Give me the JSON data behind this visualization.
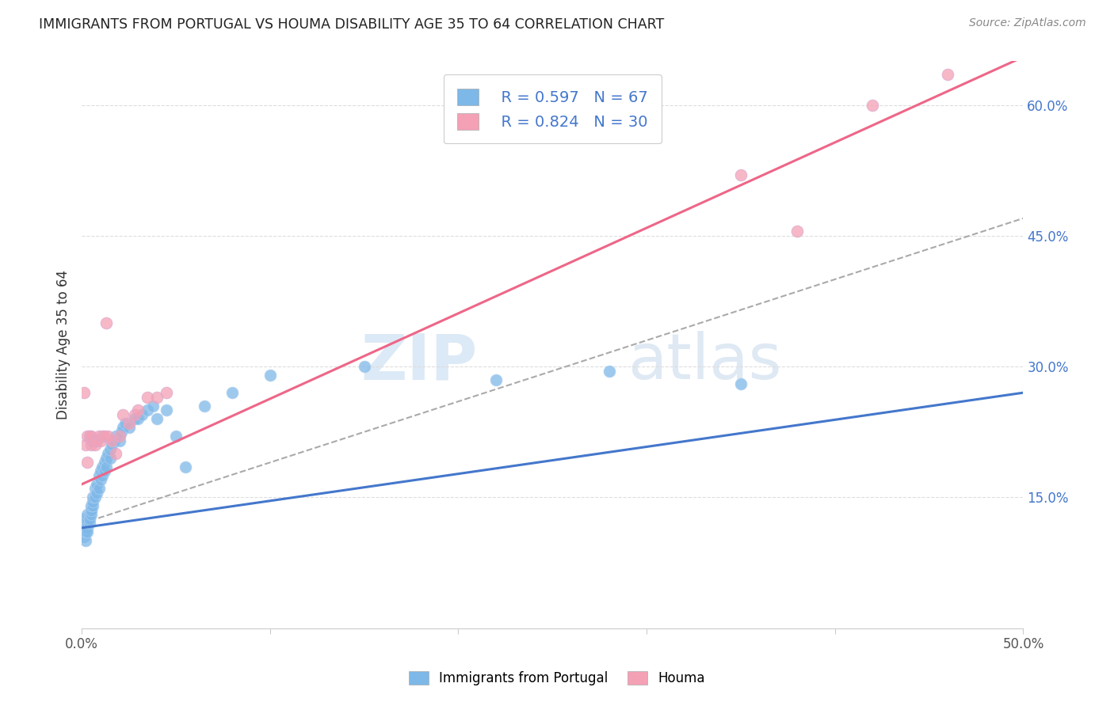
{
  "title": "IMMIGRANTS FROM PORTUGAL VS HOUMA DISABILITY AGE 35 TO 64 CORRELATION CHART",
  "source": "Source: ZipAtlas.com",
  "ylabel": "Disability Age 35 to 64",
  "xmin": 0.0,
  "xmax": 0.5,
  "ymin": 0.0,
  "ymax": 0.65,
  "xticks": [
    0.0,
    0.1,
    0.2,
    0.3,
    0.4,
    0.5
  ],
  "xtick_labels_sparse": [
    "0.0%",
    "",
    "",
    "",
    "",
    "50.0%"
  ],
  "yticks_right": [
    0.15,
    0.3,
    0.45,
    0.6
  ],
  "ytick_labels_right": [
    "15.0%",
    "30.0%",
    "45.0%",
    "60.0%"
  ],
  "legend_r1": "R = 0.597",
  "legend_n1": "N = 67",
  "legend_r2": "R = 0.824",
  "legend_n2": "N = 30",
  "blue_color": "#7db8e8",
  "pink_color": "#f4a0b5",
  "blue_line_color": "#4477cc",
  "pink_line_color": "#ee6688",
  "watermark": "ZIPatlas",
  "blue_scatter_x": [
    0.001,
    0.001,
    0.001,
    0.001,
    0.001,
    0.002,
    0.002,
    0.002,
    0.002,
    0.002,
    0.002,
    0.003,
    0.003,
    0.003,
    0.003,
    0.003,
    0.004,
    0.004,
    0.004,
    0.005,
    0.005,
    0.005,
    0.005,
    0.006,
    0.006,
    0.006,
    0.007,
    0.007,
    0.008,
    0.008,
    0.009,
    0.009,
    0.01,
    0.01,
    0.011,
    0.011,
    0.012,
    0.012,
    0.013,
    0.013,
    0.014,
    0.015,
    0.015,
    0.016,
    0.017,
    0.018,
    0.02,
    0.021,
    0.022,
    0.023,
    0.025,
    0.028,
    0.03,
    0.032,
    0.035,
    0.038,
    0.04,
    0.045,
    0.05,
    0.055,
    0.065,
    0.08,
    0.1,
    0.15,
    0.22,
    0.28,
    0.35
  ],
  "blue_scatter_y": [
    0.105,
    0.11,
    0.115,
    0.12,
    0.125,
    0.1,
    0.11,
    0.115,
    0.12,
    0.115,
    0.125,
    0.115,
    0.12,
    0.125,
    0.13,
    0.11,
    0.13,
    0.12,
    0.125,
    0.135,
    0.13,
    0.135,
    0.14,
    0.14,
    0.145,
    0.15,
    0.15,
    0.16,
    0.155,
    0.165,
    0.16,
    0.175,
    0.17,
    0.18,
    0.185,
    0.175,
    0.19,
    0.18,
    0.195,
    0.185,
    0.2,
    0.195,
    0.205,
    0.21,
    0.215,
    0.22,
    0.215,
    0.225,
    0.23,
    0.235,
    0.23,
    0.24,
    0.24,
    0.245,
    0.25,
    0.255,
    0.24,
    0.25,
    0.22,
    0.185,
    0.255,
    0.27,
    0.29,
    0.3,
    0.285,
    0.295,
    0.28
  ],
  "pink_scatter_x": [
    0.001,
    0.002,
    0.003,
    0.003,
    0.004,
    0.005,
    0.005,
    0.006,
    0.007,
    0.008,
    0.009,
    0.01,
    0.011,
    0.012,
    0.013,
    0.014,
    0.016,
    0.018,
    0.02,
    0.022,
    0.025,
    0.028,
    0.03,
    0.035,
    0.04,
    0.045,
    0.35,
    0.38,
    0.42,
    0.46
  ],
  "pink_scatter_y": [
    0.27,
    0.21,
    0.22,
    0.19,
    0.22,
    0.21,
    0.22,
    0.215,
    0.21,
    0.215,
    0.22,
    0.215,
    0.22,
    0.22,
    0.35,
    0.22,
    0.215,
    0.2,
    0.22,
    0.245,
    0.235,
    0.245,
    0.25,
    0.265,
    0.265,
    0.27,
    0.52,
    0.455,
    0.6,
    0.635
  ],
  "blue_line_x": [
    0.0,
    0.5
  ],
  "blue_line_y": [
    0.115,
    0.27
  ],
  "pink_line_x": [
    0.0,
    0.5
  ],
  "pink_line_y": [
    0.165,
    0.655
  ],
  "dashed_line_x": [
    0.0,
    0.5
  ],
  "dashed_line_y": [
    0.12,
    0.47
  ]
}
